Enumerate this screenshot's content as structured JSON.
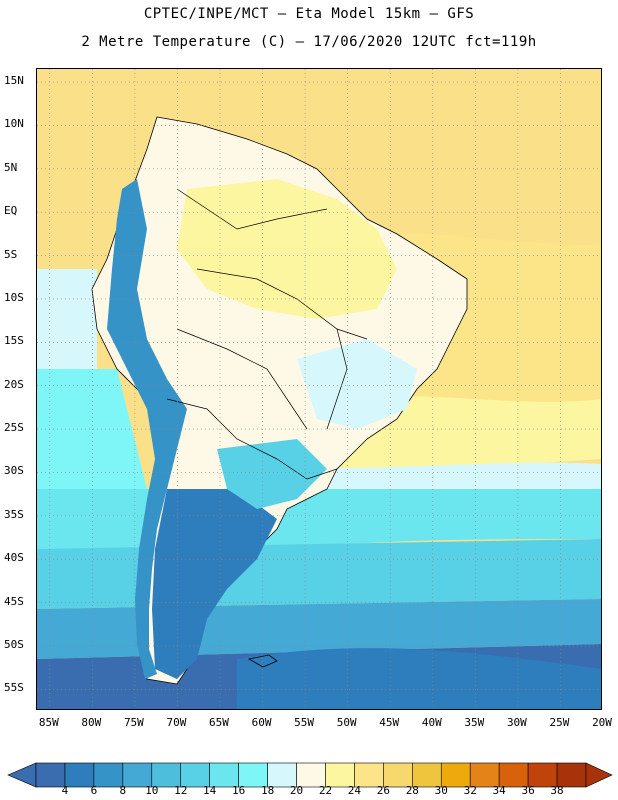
{
  "header": {
    "title_line1": "CPTEC/INPE/MCT –  Eta Model 15km – GFS",
    "title_line2": "2 Metre Temperature (C) – 17/06/2020 12UTC fct=119h"
  },
  "axes": {
    "lat_labels": [
      "15N",
      "10N",
      "5N",
      "EQ",
      "5S",
      "10S",
      "15S",
      "20S",
      "25S",
      "30S",
      "35S",
      "40S",
      "45S",
      "50S",
      "55S"
    ],
    "lon_labels": [
      "85W",
      "80W",
      "75W",
      "70W",
      "65W",
      "60W",
      "55W",
      "50W",
      "45W",
      "40W",
      "35W",
      "30W",
      "25W",
      "20W"
    ],
    "lat_range": [
      -57.5,
      16.5
    ],
    "lon_range": [
      -86.5,
      -20
    ],
    "grid": "dotted"
  },
  "legend": {
    "values": [
      "4",
      "6",
      "8",
      "10",
      "12",
      "14",
      "16",
      "18",
      "20",
      "22",
      "24",
      "26",
      "28",
      "30",
      "32",
      "34",
      "36",
      "38"
    ],
    "colors": [
      "#3a6cb0",
      "#2e7dbd",
      "#3593c8",
      "#44a9d4",
      "#4dbfdd",
      "#58d1e6",
      "#6be6ef",
      "#7ef6f8",
      "#d6f7fb",
      "#fef9e6",
      "#fdf6a0",
      "#fbe588",
      "#f7d86c",
      "#f0c53e",
      "#eeaa0c",
      "#e48418",
      "#d8620c",
      "#c0430a",
      "#a8320a"
    ]
  },
  "map": {
    "region": "South America",
    "ocean_colors": {
      "north_tropical": "#fbe08a",
      "atlantic_subtropical": "#fdf6a0",
      "south_atlantic_mid": "#7ef6f8",
      "southern_ocean": "#3a6cb0"
    }
  }
}
